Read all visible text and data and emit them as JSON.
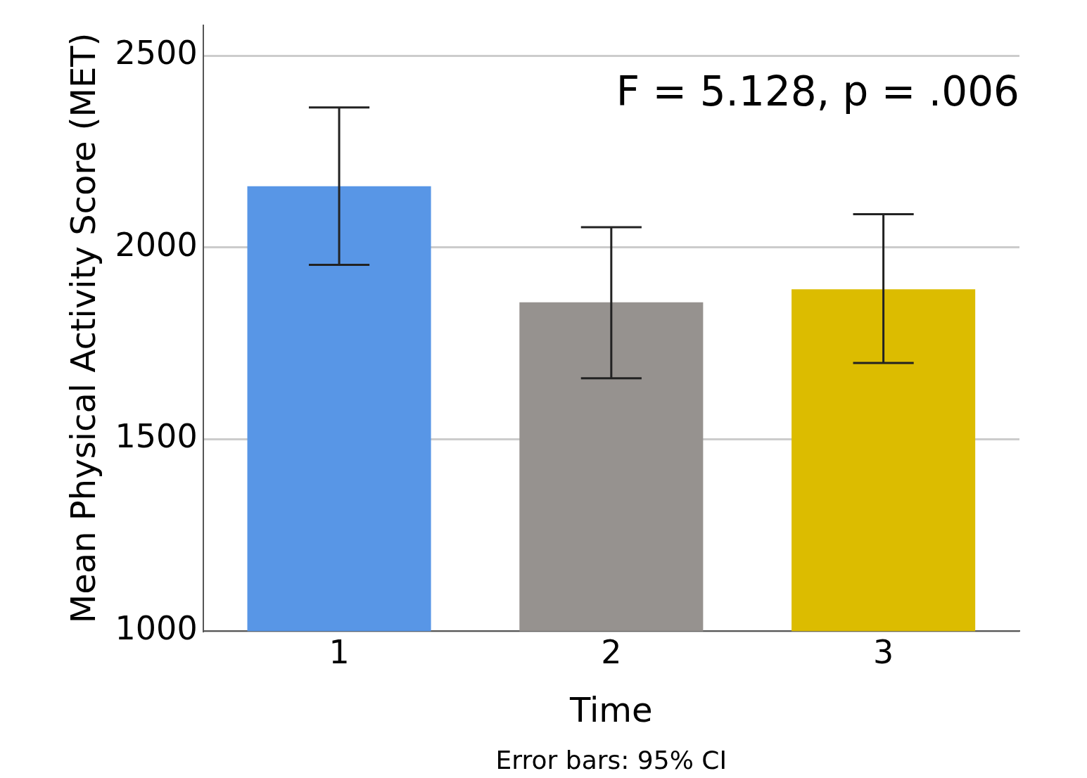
{
  "chart_data": {
    "type": "bar",
    "xlabel": "Time",
    "ylabel": "Mean Physical Activity Score (MET)",
    "categories": [
      "1",
      "2",
      "3"
    ],
    "values": [
      2160,
      1857,
      1891
    ],
    "colors": [
      "#5896e6",
      "#96928f",
      "#dcbc00"
    ],
    "errors": [
      [
        1955,
        2365
      ],
      [
        1659,
        2053
      ],
      [
        1699,
        2087
      ]
    ],
    "ylim": [
      1000,
      2580
    ],
    "yticks": [
      1000,
      1500,
      2000,
      2500
    ],
    "grid": "y",
    "legend": false,
    "annotations": [
      "F = 5.128, p = .006",
      "Error bars: 95% CI"
    ]
  }
}
